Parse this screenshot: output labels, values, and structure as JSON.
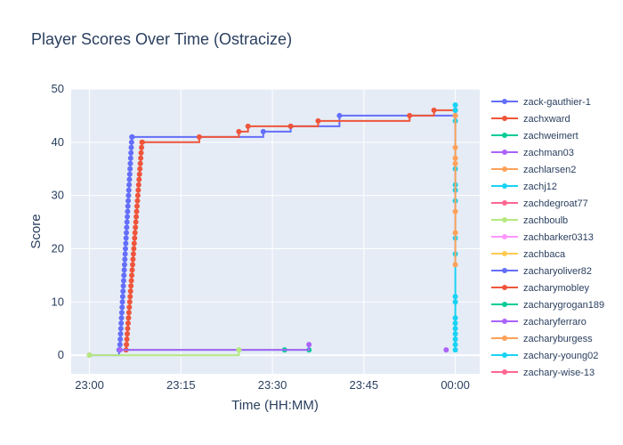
{
  "chart_data": {
    "type": "line",
    "title": "Player Scores Over Time (Ostracize)",
    "xlabel": "Time (HH:MM)",
    "ylabel": "Score",
    "x_unit": "HH:MM",
    "xlim": [
      "22:57",
      "00:04"
    ],
    "ylim": [
      -3.5,
      50
    ],
    "x_ticks": [
      "23:00",
      "23:15",
      "23:30",
      "23:45",
      "00:00"
    ],
    "y_ticks": [
      0,
      10,
      20,
      30,
      40,
      50
    ],
    "grid": true,
    "line_shape": "step",
    "legend_placement": "right",
    "background": "#e5ecf6",
    "series": [
      {
        "name": "zack-gauthier-1",
        "color": "#636efa",
        "x": [
          "23:00",
          "23:04:51",
          "23:05:00",
          "23:05:03",
          "23:05:06",
          "23:05:09",
          "23:05:12",
          "23:05:15",
          "23:05:18",
          "23:05:21",
          "23:05:24",
          "23:05:27",
          "23:05:30",
          "23:05:33",
          "23:05:36",
          "23:05:39",
          "23:05:42",
          "23:05:45",
          "23:05:48",
          "23:05:51",
          "23:05:54",
          "23:05:57",
          "23:06:00",
          "23:06:03",
          "23:06:06",
          "23:06:09",
          "23:06:12",
          "23:06:15",
          "23:06:18",
          "23:06:21",
          "23:06:24",
          "23:06:27",
          "23:06:30",
          "23:06:33",
          "23:06:36",
          "23:06:39",
          "23:06:42",
          "23:06:45",
          "23:06:48",
          "23:06:51",
          "23:06:54",
          "23:06:57",
          "23:07:00",
          "23:28:30",
          "23:33:00",
          "23:41:00",
          "00:00"
        ],
        "y": [
          0,
          1,
          2,
          3,
          4,
          5,
          6,
          7,
          8,
          9,
          10,
          11,
          12,
          13,
          14,
          15,
          16,
          17,
          18,
          19,
          20,
          21,
          22,
          23,
          24,
          25,
          26,
          27,
          28,
          29,
          30,
          31,
          32,
          33,
          34,
          35,
          36,
          37,
          38,
          39,
          40,
          41,
          41,
          42,
          43,
          45,
          45
        ]
      },
      {
        "name": "zachxward",
        "color": "#ef553b",
        "x": [
          "23:06:00",
          "23:06:04",
          "23:06:08",
          "23:06:12",
          "23:06:16",
          "23:06:20",
          "23:06:24",
          "23:06:28",
          "23:06:32",
          "23:06:36",
          "23:06:40",
          "23:06:44",
          "23:06:48",
          "23:06:52",
          "23:06:56",
          "23:07:00",
          "23:07:04",
          "23:07:08",
          "23:07:12",
          "23:07:16",
          "23:07:20",
          "23:07:24",
          "23:07:28",
          "23:07:32",
          "23:07:36",
          "23:07:40",
          "23:07:44",
          "23:07:48",
          "23:07:52",
          "23:07:56",
          "23:08:00",
          "23:08:04",
          "23:08:08",
          "23:08:12",
          "23:08:16",
          "23:08:20",
          "23:08:24",
          "23:08:28",
          "23:08:32",
          "23:08:36",
          "23:08:40",
          "23:18:00",
          "23:24:30",
          "23:26:00",
          "23:33:00",
          "23:37:30",
          "23:52:30",
          "23:56:30",
          "00:00"
        ],
        "y": [
          1,
          2,
          3,
          4,
          5,
          6,
          7,
          8,
          9,
          10,
          11,
          12,
          13,
          14,
          15,
          16,
          17,
          18,
          19,
          20,
          21,
          22,
          23,
          24,
          25,
          26,
          27,
          28,
          29,
          30,
          31,
          32,
          33,
          34,
          35,
          36,
          37,
          38,
          39,
          40,
          40,
          41,
          42,
          43,
          43,
          44,
          45,
          46,
          46
        ]
      },
      {
        "name": "zachweimert",
        "color": "#00cc96",
        "x": [
          "23:05:00",
          "23:32:00",
          "23:36:00"
        ],
        "y": [
          1,
          1,
          1
        ]
      },
      {
        "name": "zachman03",
        "color": "#ab63fa",
        "x": [
          "23:05:00",
          "23:36:00"
        ],
        "y": [
          1,
          2
        ]
      },
      {
        "name": "zachlarsen2",
        "color": "#ffa15a",
        "x": [
          "23:00"
        ],
        "y": [
          0
        ]
      },
      {
        "name": "zachj12",
        "color": "#19d3f3",
        "x": [
          "00:00",
          "00:00",
          "00:00",
          "00:00",
          "00:00",
          "00:00",
          "00:00",
          "00:00",
          "00:00",
          "00:00",
          "00:00",
          "00:00",
          "00:00",
          "00:00",
          "00:00",
          "00:00",
          "00:00",
          "00:00"
        ],
        "y": [
          1,
          2,
          3,
          4,
          5,
          6,
          7,
          10,
          11,
          19,
          22,
          29,
          31,
          32,
          35,
          44,
          46,
          47
        ]
      },
      {
        "name": "zachdegroat77",
        "color": "#ff6692",
        "x": [],
        "y": []
      },
      {
        "name": "zachboulb",
        "color": "#b6e880",
        "x": [
          "23:00",
          "23:24:30"
        ],
        "y": [
          0,
          1
        ]
      },
      {
        "name": "zachbarker0313",
        "color": "#ff97ff",
        "x": [],
        "y": []
      },
      {
        "name": "zachbaca",
        "color": "#fecb52",
        "x": [],
        "y": []
      },
      {
        "name": "zacharyoliver82",
        "color": "#636efa",
        "x": [],
        "y": []
      },
      {
        "name": "zacharymobley",
        "color": "#ef553b",
        "x": [],
        "y": []
      },
      {
        "name": "zacharygrogan189",
        "color": "#00cc96",
        "x": [],
        "y": []
      },
      {
        "name": "zacharyferraro",
        "color": "#ab63fa",
        "x": [
          "23:58:30"
        ],
        "y": [
          1
        ]
      },
      {
        "name": "zacharyburgess",
        "color": "#ffa15a",
        "x": [
          "00:00",
          "00:00",
          "00:00",
          "00:00",
          "00:00",
          "00:00",
          "00:00"
        ],
        "y": [
          17,
          23,
          27,
          36,
          37,
          39,
          45
        ]
      },
      {
        "name": "zachary-young02",
        "color": "#19d3f3",
        "x": [],
        "y": []
      },
      {
        "name": "zachary-wise-13",
        "color": "#ff6692",
        "x": [],
        "y": []
      }
    ]
  }
}
